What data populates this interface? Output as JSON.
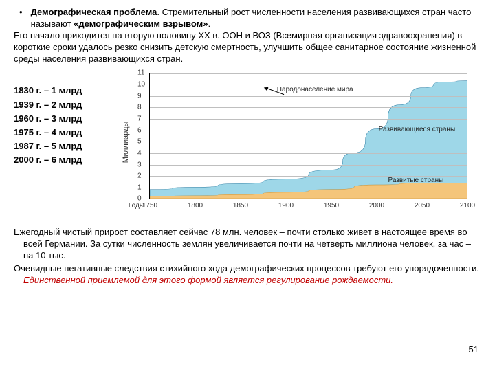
{
  "header": {
    "bullet": "•",
    "title_bold": "Демографическая проблема",
    "line1_rest": ". Стремительный рост численности населения развивающихся стран часто называют ",
    "quote_bold": "«демографическим взрывом»",
    "period": ".",
    "line2": "Его начало приходится на вторую половину XX в. ООН и ВОЗ (Всемирная организация здравоохранения) в короткие сроки удалось резко снизить детскую смертность, улучшить общее санитарное состояние жизненной среды населения развивающихся стран."
  },
  "timeline": [
    "1830 г. – 1 млрд",
    "1939 г. – 2 млрд",
    "1960 г. – 3 млрд",
    "1975 г. – 4 млрд",
    "1987 г. – 5 млрд",
    "2000 г. – 6 млрд"
  ],
  "chart": {
    "type": "area",
    "ylabel": "Миллиарды",
    "xlabel": "Годы",
    "ylim": [
      0,
      11
    ],
    "xlim": [
      1750,
      2100
    ],
    "ytick_step": 1,
    "xtick_step": 50,
    "grid_color": "#bfbfbf",
    "background_color": "#ffffff",
    "series": [
      {
        "name": "world",
        "label": "Народонаселение мира",
        "color_fill": "#9ed7e8",
        "color_line": "#2a7aa0",
        "label_pos": {
          "x_pct": 40,
          "y_pct": 10
        },
        "data": [
          {
            "x": 1750,
            "y": 0.8
          },
          {
            "x": 1800,
            "y": 1.0
          },
          {
            "x": 1850,
            "y": 1.3
          },
          {
            "x": 1900,
            "y": 1.7
          },
          {
            "x": 1950,
            "y": 2.5
          },
          {
            "x": 1975,
            "y": 4.0
          },
          {
            "x": 2000,
            "y": 6.1
          },
          {
            "x": 2025,
            "y": 8.2
          },
          {
            "x": 2050,
            "y": 9.7
          },
          {
            "x": 2075,
            "y": 10.2
          },
          {
            "x": 2100,
            "y": 10.3
          }
        ]
      },
      {
        "name": "developing",
        "label": "Развивающиеся страны",
        "label_pos": {
          "x_pct": 72,
          "y_pct": 42
        }
      },
      {
        "name": "developed",
        "label": "Развитые страны",
        "color_fill": "#f4c57a",
        "color_line": "#c08a2e",
        "label_pos": {
          "x_pct": 75,
          "y_pct": 82
        },
        "data": [
          {
            "x": 1750,
            "y": 0.2
          },
          {
            "x": 1800,
            "y": 0.25
          },
          {
            "x": 1850,
            "y": 0.35
          },
          {
            "x": 1900,
            "y": 0.55
          },
          {
            "x": 1950,
            "y": 0.8
          },
          {
            "x": 2000,
            "y": 1.2
          },
          {
            "x": 2050,
            "y": 1.35
          },
          {
            "x": 2100,
            "y": 1.35
          }
        ]
      }
    ]
  },
  "footer": {
    "p1": "Ежегодный чистый прирост составляет сейчас 78 млн. человек – почти столько живет в настоящее время во всей Германии. За сутки численность землян увеличивается почти на четверть миллиона человек, за час – на 10 тыс.",
    "p2_a": "Очевидные негативные следствия стихийного хода демографических процессов требуют его упорядоченности. ",
    "p2_red": "Единственной приемлемой для этого формой является регулирование рождаемости."
  },
  "page_number": "51"
}
